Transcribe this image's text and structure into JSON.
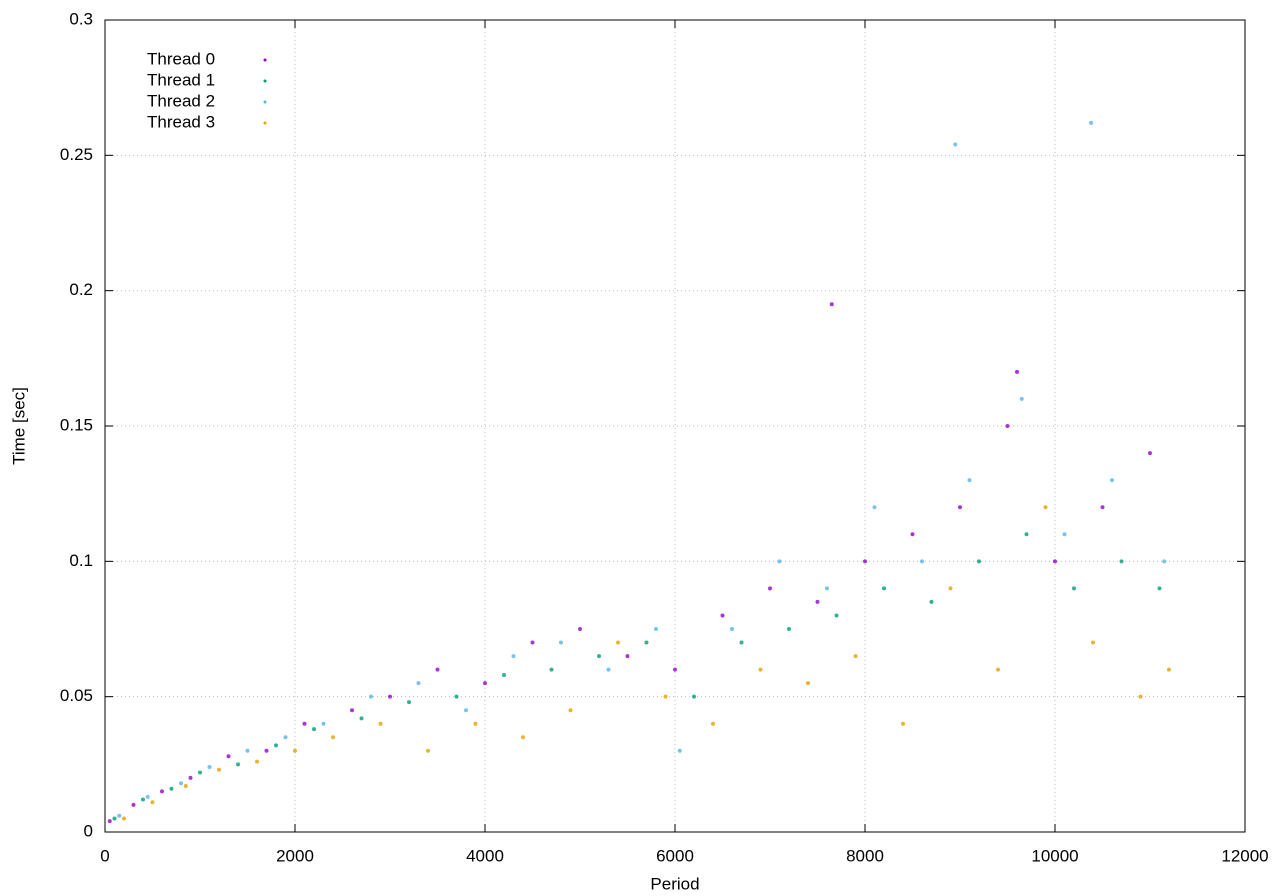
{
  "chart_data": {
    "type": "scatter",
    "xlabel": "Period",
    "ylabel": "Time [sec]",
    "xlim": [
      0,
      12000
    ],
    "xticks": [
      0,
      2000,
      4000,
      6000,
      8000,
      10000,
      12000
    ],
    "ylim": [
      0,
      0.3
    ],
    "yticks": [
      0,
      0.05,
      0.1,
      0.15,
      0.2,
      0.25,
      0.3
    ],
    "grid": true,
    "legend": "top-left",
    "series": [
      {
        "name": "Thread 0",
        "color": "#9400d3",
        "x": [
          50,
          300,
          600,
          900,
          1300,
          1700,
          2100,
          2600,
          3000,
          3500,
          4000,
          4500,
          5000,
          5500,
          6000,
          6500,
          7000,
          7500,
          8000,
          8500,
          9000,
          9500,
          10000,
          10500,
          11000,
          7650,
          9600
        ],
        "values": [
          0.004,
          0.01,
          0.015,
          0.02,
          0.028,
          0.03,
          0.04,
          0.045,
          0.05,
          0.06,
          0.055,
          0.07,
          0.075,
          0.065,
          0.06,
          0.08,
          0.09,
          0.085,
          0.1,
          0.11,
          0.12,
          0.15,
          0.1,
          0.12,
          0.14,
          0.195,
          0.17
        ]
      },
      {
        "name": "Thread 1",
        "color": "#009e73",
        "x": [
          100,
          400,
          700,
          1000,
          1400,
          1800,
          2200,
          2700,
          3200,
          3700,
          4200,
          4700,
          5200,
          5700,
          6200,
          6700,
          7200,
          7700,
          8200,
          8700,
          9200,
          9700,
          10200,
          10700,
          11100
        ],
        "values": [
          0.005,
          0.012,
          0.016,
          0.022,
          0.025,
          0.032,
          0.038,
          0.042,
          0.048,
          0.05,
          0.058,
          0.06,
          0.065,
          0.07,
          0.05,
          0.07,
          0.075,
          0.08,
          0.09,
          0.085,
          0.1,
          0.11,
          0.09,
          0.1,
          0.09
        ]
      },
      {
        "name": "Thread 2",
        "color": "#56b4e9",
        "x": [
          150,
          450,
          800,
          1100,
          1500,
          1900,
          2300,
          2800,
          3300,
          3800,
          4300,
          4800,
          5300,
          5800,
          6050,
          6600,
          7100,
          7600,
          8100,
          8600,
          9100,
          9650,
          10100,
          10600,
          11150,
          8950,
          10380
        ],
        "values": [
          0.006,
          0.013,
          0.018,
          0.024,
          0.03,
          0.035,
          0.04,
          0.05,
          0.055,
          0.045,
          0.065,
          0.07,
          0.06,
          0.075,
          0.03,
          0.075,
          0.1,
          0.09,
          0.12,
          0.1,
          0.13,
          0.16,
          0.11,
          0.13,
          0.1,
          0.254,
          0.262
        ]
      },
      {
        "name": "Thread 3",
        "color": "#e69f00",
        "x": [
          200,
          500,
          850,
          1200,
          1600,
          2000,
          2400,
          2900,
          3400,
          3900,
          4400,
          4900,
          5400,
          5900,
          6400,
          6900,
          7400,
          7900,
          8400,
          8900,
          9400,
          9900,
          10400,
          10900,
          11200
        ],
        "values": [
          0.005,
          0.011,
          0.017,
          0.023,
          0.026,
          0.03,
          0.035,
          0.04,
          0.03,
          0.04,
          0.035,
          0.045,
          0.07,
          0.05,
          0.04,
          0.06,
          0.055,
          0.065,
          0.04,
          0.09,
          0.06,
          0.12,
          0.07,
          0.05,
          0.06
        ]
      }
    ]
  }
}
